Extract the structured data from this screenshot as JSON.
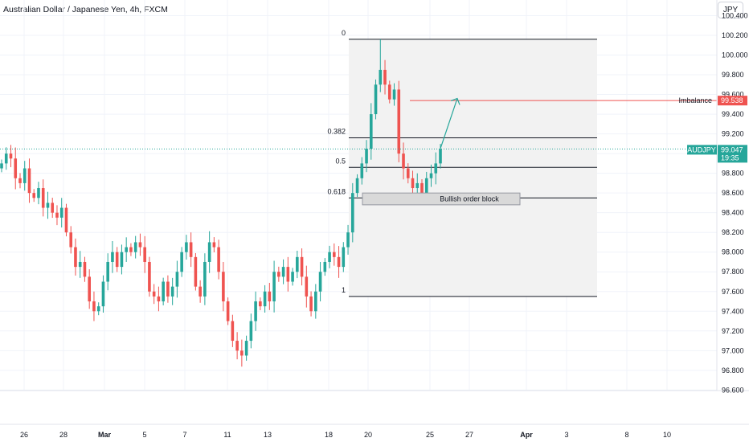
{
  "header": {
    "title": "Australian Dollar / Japanese Yen, 4h, FXCM",
    "currency_button": "JPY"
  },
  "colors": {
    "up": "#26a69a",
    "down": "#ef5350",
    "fib_zone": "#f2f2f2",
    "imbalance": "#ef5350",
    "arrow": "#26a69a"
  },
  "chart_data": {
    "type": "candlestick",
    "symbol": "AUDJPY",
    "price_axis": {
      "ticks": [
        "96.600",
        "96.800",
        "97.000",
        "97.200",
        "97.400",
        "97.600",
        "97.800",
        "98.000",
        "98.200",
        "98.400",
        "98.600",
        "98.800",
        "99.000",
        "99.200",
        "99.400",
        "99.600",
        "99.800",
        "100.000",
        "100.200",
        "100.400"
      ]
    },
    "date_axis": {
      "labels": [
        "26",
        "28",
        "Mar",
        "5",
        "7",
        "11",
        "13",
        "18",
        "20",
        "25",
        "27",
        "Apr",
        "3",
        "8",
        "10"
      ]
    },
    "last_price": {
      "symbol": "AUDJPY",
      "value": "99.047",
      "countdown": "19:35",
      "y": 99.047
    },
    "imbalance": {
      "label": "Imbalance",
      "value": "99.538",
      "y": 99.538
    },
    "fibonacci": {
      "top": 100.16,
      "bottom": 97.55,
      "levels": [
        {
          "label": "0",
          "y": 100.16
        },
        {
          "label": "0.382",
          "y": 99.16
        },
        {
          "label": "0.5",
          "y": 98.86
        },
        {
          "label": "0.618",
          "y": 98.55
        },
        {
          "label": "1",
          "y": 97.55
        }
      ]
    },
    "order_block": {
      "label": "Bullish order block",
      "y_top": 98.6,
      "y_bottom": 98.48
    },
    "arrow": {
      "from": 99.05,
      "to": 99.56
    },
    "closes": [
      98.9,
      99.0,
      98.95,
      98.75,
      98.7,
      98.85,
      98.6,
      98.55,
      98.65,
      98.45,
      98.5,
      98.4,
      98.35,
      98.45,
      98.2,
      98.05,
      97.85,
      97.9,
      97.75,
      97.5,
      97.4,
      97.45,
      97.7,
      97.9,
      98.0,
      97.85,
      98.0,
      98.05,
      98.0,
      98.1,
      98.05,
      97.9,
      97.6,
      97.55,
      97.5,
      97.7,
      97.55,
      97.65,
      97.8,
      98.0,
      98.1,
      97.95,
      97.65,
      97.55,
      97.9,
      98.1,
      98.05,
      97.8,
      97.5,
      97.3,
      97.1,
      97.0,
      96.95,
      97.1,
      97.3,
      97.5,
      97.45,
      97.6,
      97.5,
      97.8,
      97.75,
      97.85,
      97.7,
      97.8,
      97.95,
      97.75,
      97.55,
      97.4,
      97.6,
      97.8,
      97.9,
      98.0,
      97.95,
      97.85,
      98.05,
      98.2,
      98.6,
      98.75,
      98.9,
      99.05,
      99.4,
      99.7,
      99.85,
      99.7,
      99.55,
      99.65,
      99.0,
      98.85,
      98.75,
      98.65,
      98.7,
      98.6,
      98.75,
      98.8,
      98.9,
      99.047
    ]
  }
}
